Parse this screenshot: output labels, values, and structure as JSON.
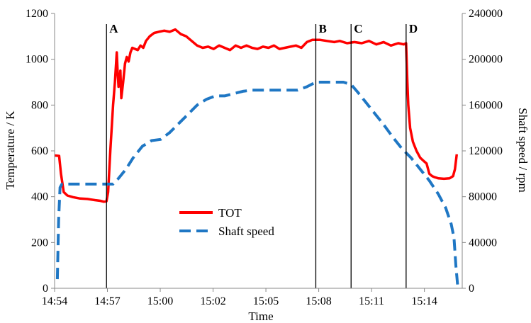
{
  "chart_data": {
    "type": "line",
    "xlabel": "Time",
    "ylabel": "Temperature / K",
    "y2label": "Shaft speed / rpm",
    "xlim": [
      0,
      22.3
    ],
    "ylim": [
      0,
      1200
    ],
    "y2lim": [
      0,
      240000
    ],
    "x_ticks": [
      {
        "x": 0,
        "label": "14:54"
      },
      {
        "x": 2.89,
        "label": "14:57"
      },
      {
        "x": 5.78,
        "label": "15:00"
      },
      {
        "x": 8.67,
        "label": "15:02"
      },
      {
        "x": 11.56,
        "label": "15:05"
      },
      {
        "x": 14.45,
        "label": "15:08"
      },
      {
        "x": 17.34,
        "label": "15:11"
      },
      {
        "x": 20.23,
        "label": "15:14"
      }
    ],
    "y_ticks": [
      0,
      200,
      400,
      600,
      800,
      1000,
      1200
    ],
    "y2_ticks": [
      0,
      40000,
      80000,
      120000,
      160000,
      200000,
      240000
    ],
    "grid": false,
    "legend": {
      "position": "center-bottom",
      "entries": [
        "TOT",
        "Shaft speed"
      ]
    },
    "colors": {
      "TOT": "#ff0000",
      "Shaft speed": "#1f77c4"
    },
    "markers": [
      {
        "label": "A",
        "x": 2.84
      },
      {
        "label": "B",
        "x": 14.29
      },
      {
        "label": "C",
        "x": 16.22
      },
      {
        "label": "D",
        "x": 19.23
      }
    ],
    "series": [
      {
        "name": "TOT",
        "axis": "left",
        "x": [
          0,
          0.25,
          0.35,
          0.5,
          0.7,
          1.0,
          1.4,
          1.8,
          2.2,
          2.5,
          2.7,
          2.84,
          2.93,
          3.05,
          3.2,
          3.3,
          3.4,
          3.45,
          3.5,
          3.55,
          3.6,
          3.65,
          3.75,
          3.85,
          3.95,
          4.05,
          4.15,
          4.25,
          4.4,
          4.55,
          4.7,
          4.85,
          5.0,
          5.2,
          5.45,
          5.7,
          6.0,
          6.3,
          6.6,
          6.9,
          7.2,
          7.5,
          7.8,
          8.1,
          8.4,
          8.7,
          9.0,
          9.3,
          9.6,
          9.9,
          10.2,
          10.5,
          10.8,
          11.1,
          11.4,
          11.7,
          12.0,
          12.3,
          12.6,
          12.9,
          13.2,
          13.5,
          13.8,
          14.1,
          14.5,
          14.9,
          15.3,
          15.6,
          16.0,
          16.4,
          16.8,
          17.2,
          17.6,
          18.0,
          18.4,
          18.8,
          19.1,
          19.23,
          19.3,
          19.35,
          19.45,
          19.6,
          19.8,
          20.0,
          20.2,
          20.35,
          20.5,
          20.65,
          20.8,
          21.0,
          21.3,
          21.6,
          21.8,
          21.9,
          22.0
        ],
        "values": [
          580,
          578,
          500,
          420,
          405,
          398,
          392,
          390,
          385,
          382,
          378,
          380,
          420,
          600,
          800,
          900,
          1030,
          940,
          880,
          900,
          950,
          830,
          900,
          980,
          1010,
          990,
          1030,
          1050,
          1045,
          1040,
          1060,
          1050,
          1080,
          1100,
          1115,
          1120,
          1125,
          1120,
          1130,
          1110,
          1100,
          1080,
          1060,
          1050,
          1055,
          1045,
          1060,
          1050,
          1040,
          1060,
          1050,
          1060,
          1050,
          1045,
          1055,
          1050,
          1060,
          1045,
          1050,
          1055,
          1060,
          1050,
          1075,
          1085,
          1085,
          1080,
          1075,
          1080,
          1070,
          1075,
          1070,
          1080,
          1065,
          1075,
          1060,
          1070,
          1065,
          1070,
          900,
          800,
          700,
          640,
          600,
          570,
          555,
          545,
          500,
          490,
          485,
          480,
          478,
          480,
          490,
          520,
          585
        ]
      },
      {
        "name": "Shaft speed",
        "axis": "right",
        "x": [
          0.15,
          0.22,
          0.3,
          0.4,
          0.6,
          1.0,
          1.5,
          2.0,
          2.5,
          2.84,
          3.0,
          3.2,
          3.5,
          3.9,
          4.3,
          4.8,
          5.3,
          5.8,
          6.3,
          6.8,
          7.3,
          7.8,
          8.3,
          8.8,
          9.3,
          9.8,
          10.3,
          10.8,
          11.3,
          11.8,
          12.3,
          12.8,
          13.3,
          13.8,
          14.29,
          14.8,
          15.3,
          15.8,
          16.22,
          16.6,
          17.0,
          17.5,
          18.0,
          18.5,
          19.0,
          19.5,
          20.0,
          20.5,
          21.0,
          21.4,
          21.7,
          21.85,
          21.95,
          22.05
        ],
        "values": [
          8000,
          60000,
          88000,
          91000,
          91000,
          91000,
          91000,
          91000,
          91000,
          91000,
          91000,
          91000,
          96000,
          104000,
          114000,
          124000,
          129000,
          130000,
          136000,
          144000,
          152000,
          160000,
          165000,
          168000,
          168000,
          170000,
          172000,
          173000,
          173000,
          173000,
          173000,
          173000,
          173000,
          176000,
          180000,
          180000,
          180000,
          180000,
          178000,
          171000,
          163000,
          153000,
          143000,
          132000,
          122000,
          114000,
          104000,
          94000,
          82000,
          70000,
          56000,
          44000,
          20000,
          2000
        ]
      }
    ]
  }
}
